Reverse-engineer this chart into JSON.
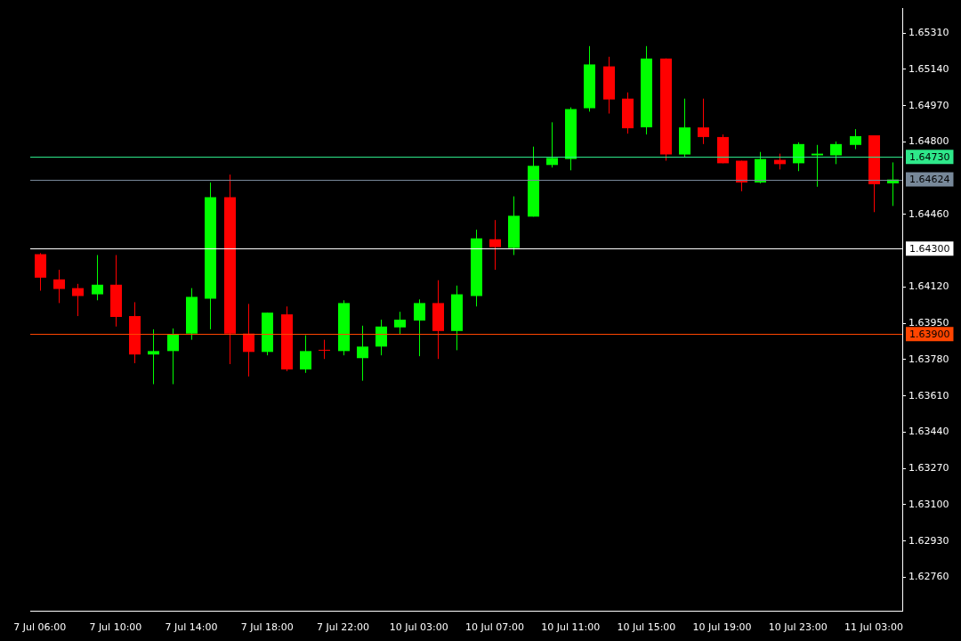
{
  "chart_data": {
    "type": "candlestick",
    "categories": [
      "7 Jul 06:00",
      null,
      null,
      null,
      "7 Jul 10:00",
      null,
      null,
      null,
      "7 Jul 14:00",
      null,
      null,
      null,
      "7 Jul 18:00",
      null,
      null,
      null,
      "7 Jul 22:00",
      null,
      null,
      null,
      "10 Jul 03:00",
      null,
      null,
      null,
      "10 Jul 07:00",
      null,
      null,
      null,
      "10 Jul 11:00",
      null,
      null,
      null,
      "10 Jul 15:00",
      null,
      null,
      null,
      "10 Jul 19:00",
      null,
      null,
      null,
      "10 Jul 23:00",
      null,
      null,
      null,
      "11 Jul 03:00",
      null
    ],
    "ohlc": [
      [
        1.64274,
        1.64279,
        1.64103,
        1.64164
      ],
      [
        1.64156,
        1.64201,
        1.64045,
        1.64111
      ],
      [
        1.64115,
        1.64135,
        1.63984,
        1.64078
      ],
      [
        1.64086,
        1.6427,
        1.64058,
        1.64131
      ],
      [
        1.64131,
        1.6427,
        1.63935,
        1.6398
      ],
      [
        1.63984,
        1.64049,
        1.63763,
        1.63804
      ],
      [
        1.63804,
        1.63922,
        1.63665,
        1.6382
      ],
      [
        1.6382,
        1.63926,
        1.63665,
        1.63898
      ],
      [
        1.63902,
        1.64115,
        1.63873,
        1.64074
      ],
      [
        1.64066,
        1.6461,
        1.63922,
        1.64541
      ],
      [
        1.64541,
        1.64647,
        1.63759,
        1.63902
      ],
      [
        1.63902,
        1.64041,
        1.63701,
        1.63816
      ],
      [
        1.63816,
        1.64,
        1.638,
        1.64
      ],
      [
        1.63992,
        1.64029,
        1.63726,
        1.63734
      ],
      [
        1.63734,
        1.63894,
        1.63718,
        1.6382
      ],
      [
        1.63826,
        1.63873,
        1.63783,
        1.63822
      ],
      [
        1.6382,
        1.64058,
        1.638,
        1.64045
      ],
      [
        1.63787,
        1.63939,
        1.63681,
        1.63841
      ],
      [
        1.63841,
        1.63967,
        1.638,
        1.63935
      ],
      [
        1.63931,
        1.64004,
        1.63898,
        1.63967
      ],
      [
        1.63963,
        1.64062,
        1.63796,
        1.64045
      ],
      [
        1.64045,
        1.64152,
        1.63783,
        1.63914
      ],
      [
        1.63914,
        1.64127,
        1.63824,
        1.64086
      ],
      [
        1.64078,
        1.64389,
        1.64029,
        1.64348
      ],
      [
        1.64344,
        1.64434,
        1.64201,
        1.64307
      ],
      [
        1.64303,
        1.64545,
        1.6427,
        1.64454
      ],
      [
        1.6445,
        1.64778,
        1.6445,
        1.64688
      ],
      [
        1.64692,
        1.64892,
        1.6468,
        1.64725
      ],
      [
        1.6472,
        1.64962,
        1.64667,
        1.64954
      ],
      [
        1.64958,
        1.65249,
        1.64942,
        1.65163
      ],
      [
        1.65154,
        1.65199,
        1.64933,
        1.64999
      ],
      [
        1.65003,
        1.65032,
        1.64839,
        1.64864
      ],
      [
        1.64868,
        1.65249,
        1.64835,
        1.65191
      ],
      [
        1.65191,
        1.65191,
        1.64712,
        1.64741
      ],
      [
        1.64741,
        1.65003,
        1.64729,
        1.64868
      ],
      [
        1.64868,
        1.65003,
        1.6479,
        1.64823
      ],
      [
        1.64823,
        1.64835,
        1.647,
        1.647
      ],
      [
        1.64712,
        1.64712,
        1.64569,
        1.6461
      ],
      [
        1.6461,
        1.64753,
        1.64606,
        1.6472
      ],
      [
        1.64716,
        1.64745,
        1.64671,
        1.64696
      ],
      [
        1.647,
        1.64798,
        1.64663,
        1.6479
      ],
      [
        1.64737,
        1.64786,
        1.6459,
        1.64745
      ],
      [
        1.64737,
        1.64802,
        1.64696,
        1.6479
      ],
      [
        1.64786,
        1.6486,
        1.64766,
        1.64827
      ],
      [
        1.64831,
        1.64831,
        1.64471,
        1.64602
      ],
      [
        1.64606,
        1.64704,
        1.645,
        1.64624
      ]
    ],
    "colors": [
      "#ff0000",
      "#ff0000",
      "#ff0000",
      "#00ff00",
      "#ff0000",
      "#ff0000",
      "#00ff00",
      "#00ff00",
      "#00ff00",
      "#00ff00",
      "#ff0000",
      "#ff0000",
      "#00ff00",
      "#ff0000",
      "#00ff00",
      "#ff0000",
      "#00ff00",
      "#00ff00",
      "#00ff00",
      "#00ff00",
      "#00ff00",
      "#ff0000",
      "#00ff00",
      "#00ff00",
      "#ff0000",
      "#00ff00",
      "#00ff00",
      "#00ff00",
      "#00ff00",
      "#00ff00",
      "#ff0000",
      "#ff0000",
      "#00ff00",
      "#ff0000",
      "#00ff00",
      "#ff0000",
      "#ff0000",
      "#ff0000",
      "#00ff00",
      "#ff0000",
      "#00ff00",
      "#00ff00",
      "#00ff00",
      "#00ff00",
      "#ff0000",
      "#00ff00"
    ],
    "ylim": [
      1.626,
      1.65425
    ],
    "yticks": [
      {
        "value": 1.6276,
        "label": "1.62760"
      },
      {
        "value": 1.6293,
        "label": "1.62930"
      },
      {
        "value": 1.631,
        "label": "1.63100"
      },
      {
        "value": 1.6327,
        "label": "1.63270"
      },
      {
        "value": 1.6344,
        "label": "1.63440"
      },
      {
        "value": 1.6361,
        "label": "1.63610"
      },
      {
        "value": 1.6378,
        "label": "1.63780"
      },
      {
        "value": 1.6395,
        "label": "1.63950"
      },
      {
        "value": 1.6412,
        "label": "1.64120"
      },
      {
        "value": 1.6446,
        "label": "1.64460"
      },
      {
        "value": 1.648,
        "label": "1.64800"
      },
      {
        "value": 1.6497,
        "label": "1.64970"
      },
      {
        "value": 1.6514,
        "label": "1.65140"
      },
      {
        "value": 1.6531,
        "label": "1.65310"
      }
    ],
    "ref_lines": [
      {
        "axis": "y",
        "value": 1.6473,
        "label": "1.64730",
        "color": "#2ee88a"
      },
      {
        "axis": "y",
        "value": 1.64624,
        "label": "1.64624",
        "color": "#778899"
      },
      {
        "axis": "y",
        "value": 1.643,
        "label": "1.64300",
        "color": "#ffffff"
      },
      {
        "axis": "y",
        "value": 1.639,
        "label": "1.63900",
        "color": "#ff4500"
      }
    ],
    "grid": false,
    "legend": false
  }
}
